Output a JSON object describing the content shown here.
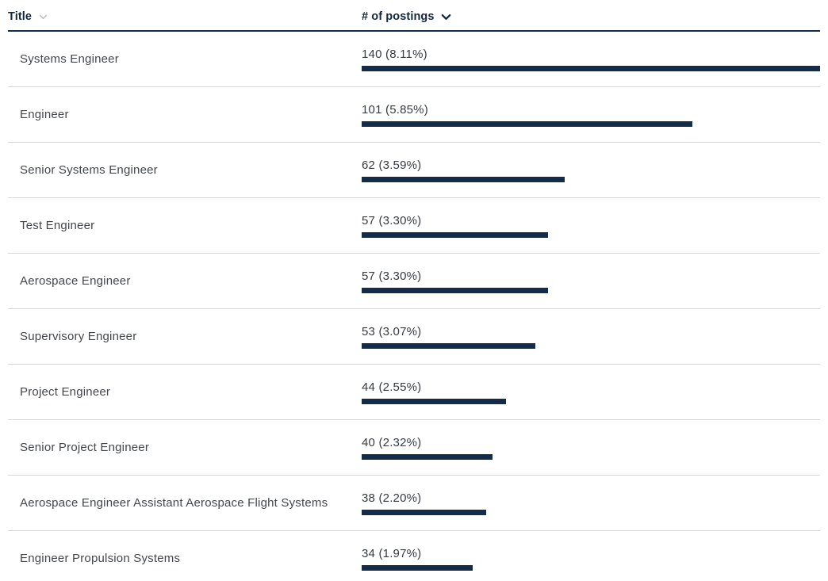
{
  "header": {
    "title_label": "Title",
    "postings_label": "# of postings",
    "title_sort_state": "inactive",
    "postings_sort_state": "descending"
  },
  "colors": {
    "bar_navy": "#122c49",
    "header_text_navy": "#12273f",
    "row_title_text": "#43474b",
    "value_text": "#363b41",
    "divider_gray": "#d8d8d8",
    "inactive_sort_icon_gray": "#b8bdc4"
  },
  "rows": [
    {
      "title": "Systems Engineer",
      "count": 140,
      "percent": "8.11%",
      "value_display": "140 (8.11%)"
    },
    {
      "title": "Engineer",
      "count": 101,
      "percent": "5.85%",
      "value_display": "101 (5.85%)"
    },
    {
      "title": "Senior Systems Engineer",
      "count": 62,
      "percent": "3.59%",
      "value_display": "62 (3.59%)"
    },
    {
      "title": "Test Engineer",
      "count": 57,
      "percent": "3.30%",
      "value_display": "57 (3.30%)"
    },
    {
      "title": "Aerospace Engineer",
      "count": 57,
      "percent": "3.30%",
      "value_display": "57 (3.30%)"
    },
    {
      "title": "Supervisory Engineer",
      "count": 53,
      "percent": "3.07%",
      "value_display": "53 (3.07%)"
    },
    {
      "title": "Project Engineer",
      "count": 44,
      "percent": "2.55%",
      "value_display": "44 (2.55%)"
    },
    {
      "title": "Senior Project Engineer",
      "count": 40,
      "percent": "2.32%",
      "value_display": "40 (2.32%)"
    },
    {
      "title": "Aerospace Engineer Assistant Aerospace Flight Systems",
      "count": 38,
      "percent": "2.20%",
      "value_display": "38 (2.20%)"
    },
    {
      "title": "Engineer Propulsion Systems",
      "count": 34,
      "percent": "1.97%",
      "value_display": "34 (1.97%)"
    }
  ],
  "chart_data": {
    "type": "bar",
    "orientation": "horizontal",
    "categories": [
      "Systems Engineer",
      "Engineer",
      "Senior Systems Engineer",
      "Test Engineer",
      "Aerospace Engineer",
      "Supervisory Engineer",
      "Project Engineer",
      "Senior Project Engineer",
      "Aerospace Engineer Assistant Aerospace Flight Systems",
      "Engineer Propulsion Systems"
    ],
    "values": [
      140,
      101,
      62,
      57,
      57,
      53,
      44,
      40,
      38,
      34
    ],
    "percent_labels": [
      "8.11%",
      "5.85%",
      "3.59%",
      "3.30%",
      "3.30%",
      "3.07%",
      "2.55%",
      "2.32%",
      "2.20%",
      "1.97%"
    ],
    "value_labels": [
      "140 (8.11%)",
      "101 (5.85%)",
      "62 (3.59%)",
      "57 (3.30%)",
      "57 (3.30%)",
      "53 (3.07%)",
      "44 (2.55%)",
      "40 (2.32%)",
      "38 (2.20%)",
      "34 (1.97%)"
    ],
    "title": "",
    "xlabel": "# of postings",
    "ylabel": "Title",
    "xlim": [
      0,
      140
    ],
    "max_value": 140,
    "grid": false,
    "legend": false,
    "sorted_by": "# of postings",
    "sort_direction": "descending"
  }
}
